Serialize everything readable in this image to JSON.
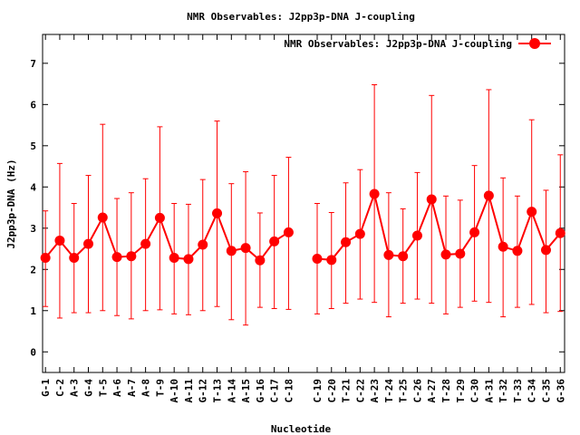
{
  "chart_data": {
    "type": "line",
    "title": "NMR Observables: J2pp3p-DNA J-coupling",
    "xlabel": "Nucleotide",
    "ylabel": "J2pp3p-DNA (Hz)",
    "ylim": [
      -0.5,
      7.7
    ],
    "yticks": [
      0,
      1,
      2,
      3,
      4,
      5,
      6,
      7
    ],
    "grid": false,
    "legend_position": "top-right",
    "color": "#ff0000",
    "categories": [
      "G-1",
      "C-2",
      "A-3",
      "G-4",
      "T-5",
      "A-6",
      "A-7",
      "A-8",
      "T-9",
      "A-10",
      "A-11",
      "G-12",
      "T-13",
      "A-14",
      "A-15",
      "G-16",
      "C-17",
      "C-18",
      "C-19",
      "C-20",
      "T-21",
      "C-22",
      "A-23",
      "T-24",
      "T-25",
      "C-26",
      "A-27",
      "T-28",
      "T-29",
      "C-30",
      "A-31",
      "T-32",
      "T-33",
      "C-34",
      "C-35",
      "G-36"
    ],
    "x_positions": [
      1,
      2,
      3,
      4,
      5,
      6,
      7,
      8,
      9,
      10,
      11,
      12,
      13,
      14,
      15,
      16,
      17,
      18,
      20,
      21,
      22,
      23,
      24,
      25,
      26,
      27,
      28,
      29,
      30,
      31,
      32,
      33,
      34,
      35,
      36,
      37
    ],
    "x_range": [
      0.8,
      37.3
    ],
    "series": [
      {
        "name": "NMR Observables: J2pp3p-DNA J-coupling",
        "values": [
          2.28,
          2.7,
          2.28,
          2.62,
          3.26,
          2.3,
          2.32,
          2.62,
          3.25,
          2.28,
          2.25,
          2.6,
          3.36,
          2.45,
          2.52,
          2.22,
          2.68,
          2.9,
          2.26,
          2.23,
          2.66,
          2.86,
          3.83,
          2.35,
          2.32,
          2.82,
          3.7,
          2.36,
          2.38,
          2.9,
          3.79,
          2.55,
          2.45,
          3.4,
          2.47,
          2.88
        ],
        "err_low": [
          1.1,
          0.82,
          0.95,
          0.95,
          1.0,
          0.88,
          0.8,
          1.0,
          1.02,
          0.92,
          0.9,
          1.0,
          1.1,
          0.78,
          0.65,
          1.08,
          1.05,
          1.03,
          0.92,
          1.05,
          1.18,
          1.28,
          1.2,
          0.85,
          1.18,
          1.28,
          1.18,
          0.92,
          1.08,
          1.23,
          1.2,
          0.85,
          1.08,
          1.15,
          0.95,
          0.98
        ],
        "err_high": [
          3.42,
          4.57,
          3.6,
          4.28,
          5.52,
          3.72,
          3.86,
          4.2,
          5.46,
          3.6,
          3.58,
          4.18,
          5.6,
          4.08,
          4.37,
          3.37,
          4.28,
          4.72,
          3.6,
          3.38,
          4.1,
          4.42,
          6.48,
          3.86,
          3.47,
          4.35,
          6.22,
          3.78,
          3.68,
          4.52,
          6.36,
          4.22,
          3.78,
          5.63,
          3.92,
          4.78
        ]
      }
    ]
  }
}
